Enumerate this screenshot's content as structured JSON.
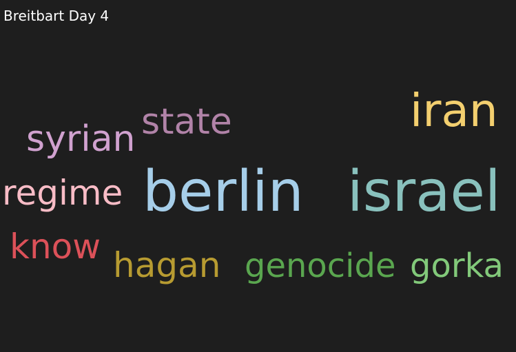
{
  "chart_data": {
    "type": "wordcloud",
    "title": "Breitbart Day 4",
    "words": [
      {
        "text": "berlin",
        "rank": 1,
        "color": "#a6cee9"
      },
      {
        "text": "israel",
        "rank": 2,
        "color": "#89c1bd"
      },
      {
        "text": "iran",
        "rank": 3,
        "color": "#f3cf6f"
      },
      {
        "text": "state",
        "rank": 4,
        "color": "#b183a8"
      },
      {
        "text": "regime",
        "rank": 5,
        "color": "#f8bcc6"
      },
      {
        "text": "syrian",
        "rank": 6,
        "color": "#d0a1cf"
      },
      {
        "text": "know",
        "rank": 7,
        "color": "#dc5159"
      },
      {
        "text": "hagan",
        "rank": 8,
        "color": "#b79b31"
      },
      {
        "text": "genocide",
        "rank": 9,
        "color": "#5aa64f"
      },
      {
        "text": "gorka",
        "rank": 10,
        "color": "#82c97a"
      }
    ]
  }
}
